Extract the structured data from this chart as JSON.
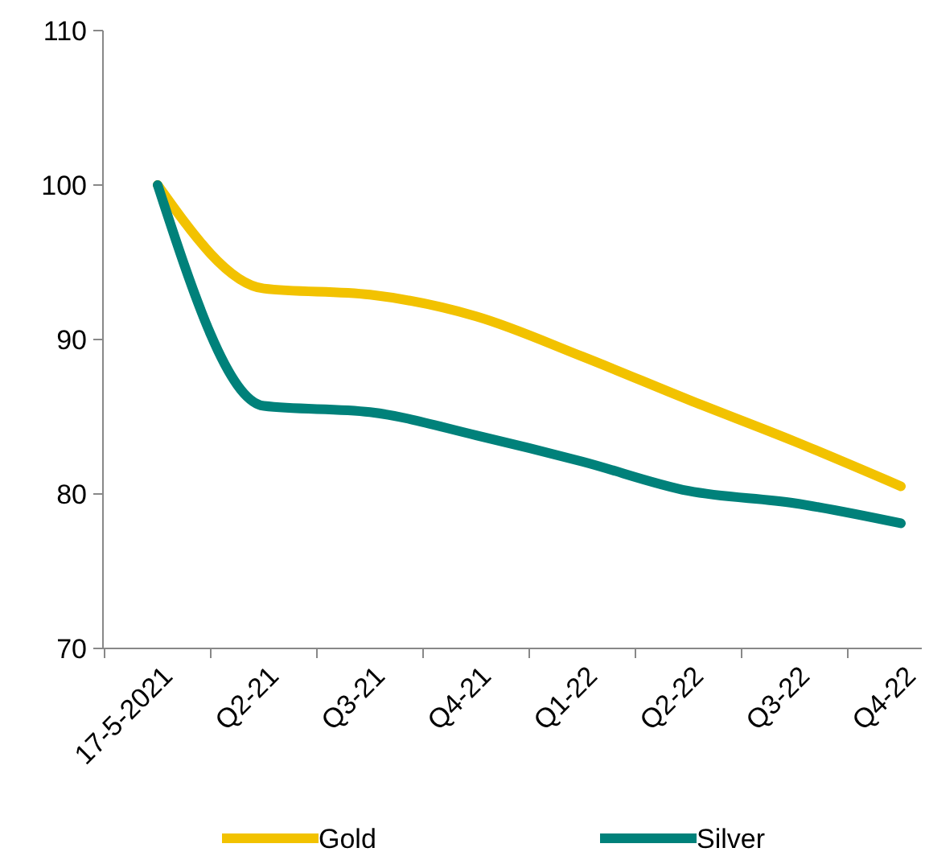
{
  "chart_data": {
    "type": "line",
    "categories": [
      "17-5-2021",
      "Q2-21",
      "Q3-21",
      "Q4-21",
      "Q1-22",
      "Q2-22",
      "Q3-22",
      "Q4-22"
    ],
    "series": [
      {
        "name": "Gold",
        "color": "#f2c200",
        "values": [
          100,
          93.3,
          92.9,
          91.5,
          88.9,
          86.1,
          83.4,
          80.5
        ]
      },
      {
        "name": "Silver",
        "color": "#00817a",
        "values": [
          100,
          85.7,
          85.3,
          83.8,
          82.1,
          80.2,
          79.4,
          78.1
        ]
      }
    ],
    "ylim": [
      70,
      110
    ],
    "yticks": [
      70,
      80,
      90,
      100,
      110
    ],
    "grid": false,
    "legend": "bottom",
    "marker": "none",
    "line_style": "solid"
  }
}
